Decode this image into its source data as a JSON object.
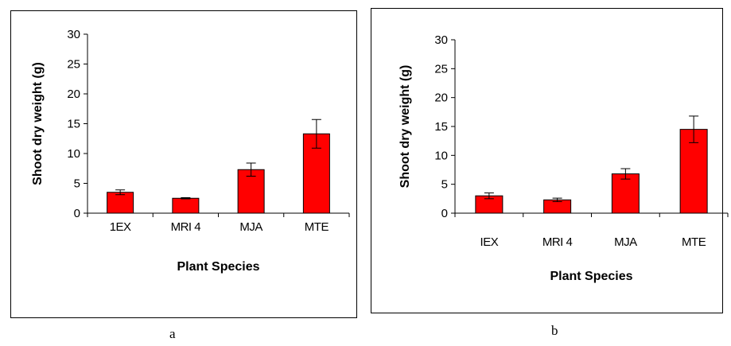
{
  "chart_data": [
    {
      "panel": "a",
      "type": "bar",
      "categories": [
        "1EX",
        "MRI 4",
        "MJA",
        "MTE"
      ],
      "values": [
        3.5,
        2.5,
        7.3,
        13.3
      ],
      "errors": [
        0.4,
        0.1,
        1.1,
        2.4
      ],
      "xlabel": "Plant Species",
      "ylabel": "Shoot dry weight (g)",
      "ylim": [
        0,
        30
      ],
      "yticks": [
        0,
        5,
        10,
        15,
        20,
        25,
        30
      ],
      "bar_color": "#ff0000",
      "grid": false
    },
    {
      "panel": "b",
      "type": "bar",
      "categories": [
        "IEX",
        "MRI 4",
        "MJA",
        "MTE"
      ],
      "values": [
        3.0,
        2.3,
        6.8,
        14.5
      ],
      "errors": [
        0.5,
        0.3,
        0.9,
        2.3
      ],
      "xlabel": "Plant Species",
      "ylabel": "Shoot dry weight (g)",
      "ylim": [
        0,
        30
      ],
      "yticks": [
        0,
        5,
        10,
        15,
        20,
        25,
        30
      ],
      "bar_color": "#ff0000",
      "grid": false
    }
  ],
  "panel_labels": [
    "a",
    "b"
  ]
}
